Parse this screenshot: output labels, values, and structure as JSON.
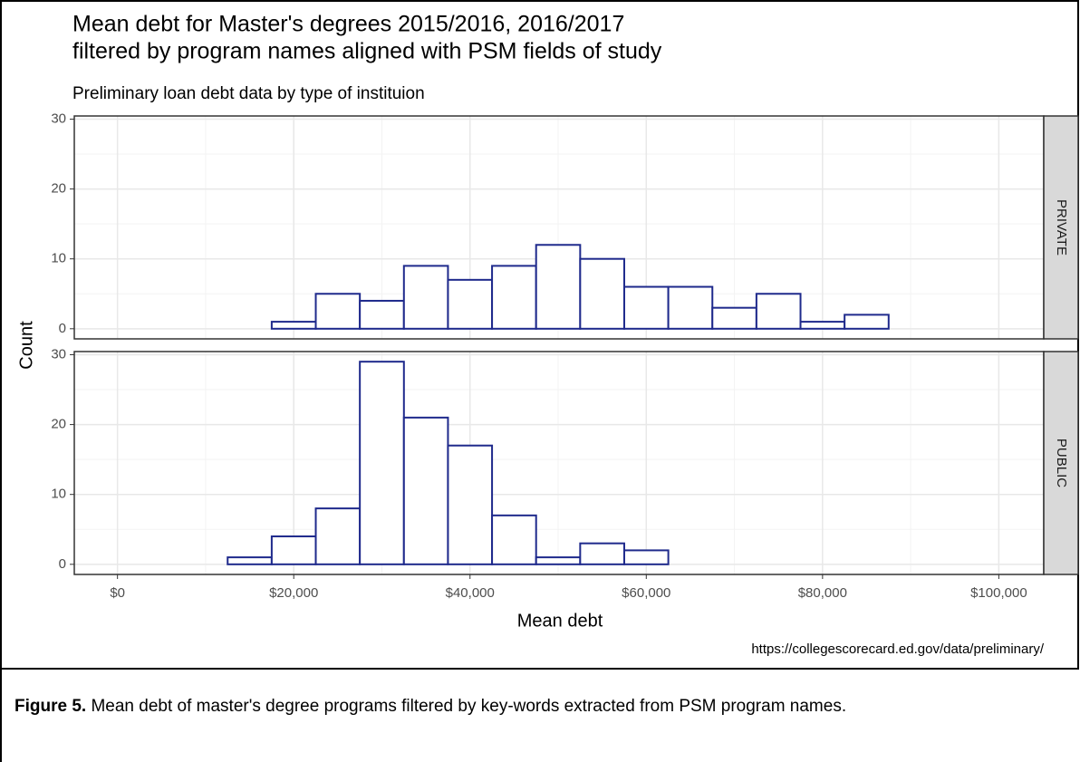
{
  "chart_data": {
    "type": "histogram",
    "title": "Mean debt for Master's degrees 2015/2016, 2016/2017",
    "title_line2": "filtered by program names aligned with PSM fields of study",
    "subtitle": "Preliminary loan debt data by type of instituion",
    "x_label": "Mean debt",
    "y_label": "Count",
    "caption": "https://collegescorecard.ed.gov/data/preliminary/",
    "bins": [
      2500,
      7500,
      12500,
      17500,
      22500,
      27500,
      32500,
      37500,
      42500,
      47500,
      52500,
      57500,
      62500,
      67500,
      72500,
      77500,
      82500,
      87500,
      92500,
      97500
    ],
    "series": [
      {
        "name": "PRIVATE",
        "color": "#1f2a8c",
        "values": [
          0,
          0,
          0,
          1,
          5,
          4,
          9,
          7,
          9,
          12,
          10,
          6,
          6,
          3,
          5,
          1,
          2,
          0,
          0
        ]
      },
      {
        "name": "PUBLIC",
        "color": "#1f2a8c",
        "values": [
          0,
          0,
          1,
          4,
          8,
          29,
          21,
          17,
          7,
          1,
          3,
          2,
          0,
          0,
          0,
          0,
          0,
          0,
          0
        ]
      }
    ],
    "xlim": [
      -4900,
      105100
    ],
    "xticks": [
      {
        "value": 0,
        "label": "$0"
      },
      {
        "value": 20000,
        "label": "$20,000"
      },
      {
        "value": 40000,
        "label": "$40,000"
      },
      {
        "value": 60000,
        "label": "$60,000"
      },
      {
        "value": 80000,
        "label": "$80,000"
      },
      {
        "value": 100000,
        "label": "$100,000"
      }
    ],
    "ylim": [
      -1.45,
      30.45
    ],
    "yticks": [
      0,
      10,
      20,
      30
    ],
    "grid": true
  },
  "figure_caption": {
    "label": "Figure 5.",
    "text": " Mean debt of master's degree programs filtered by key-words extracted from PSM program names."
  }
}
